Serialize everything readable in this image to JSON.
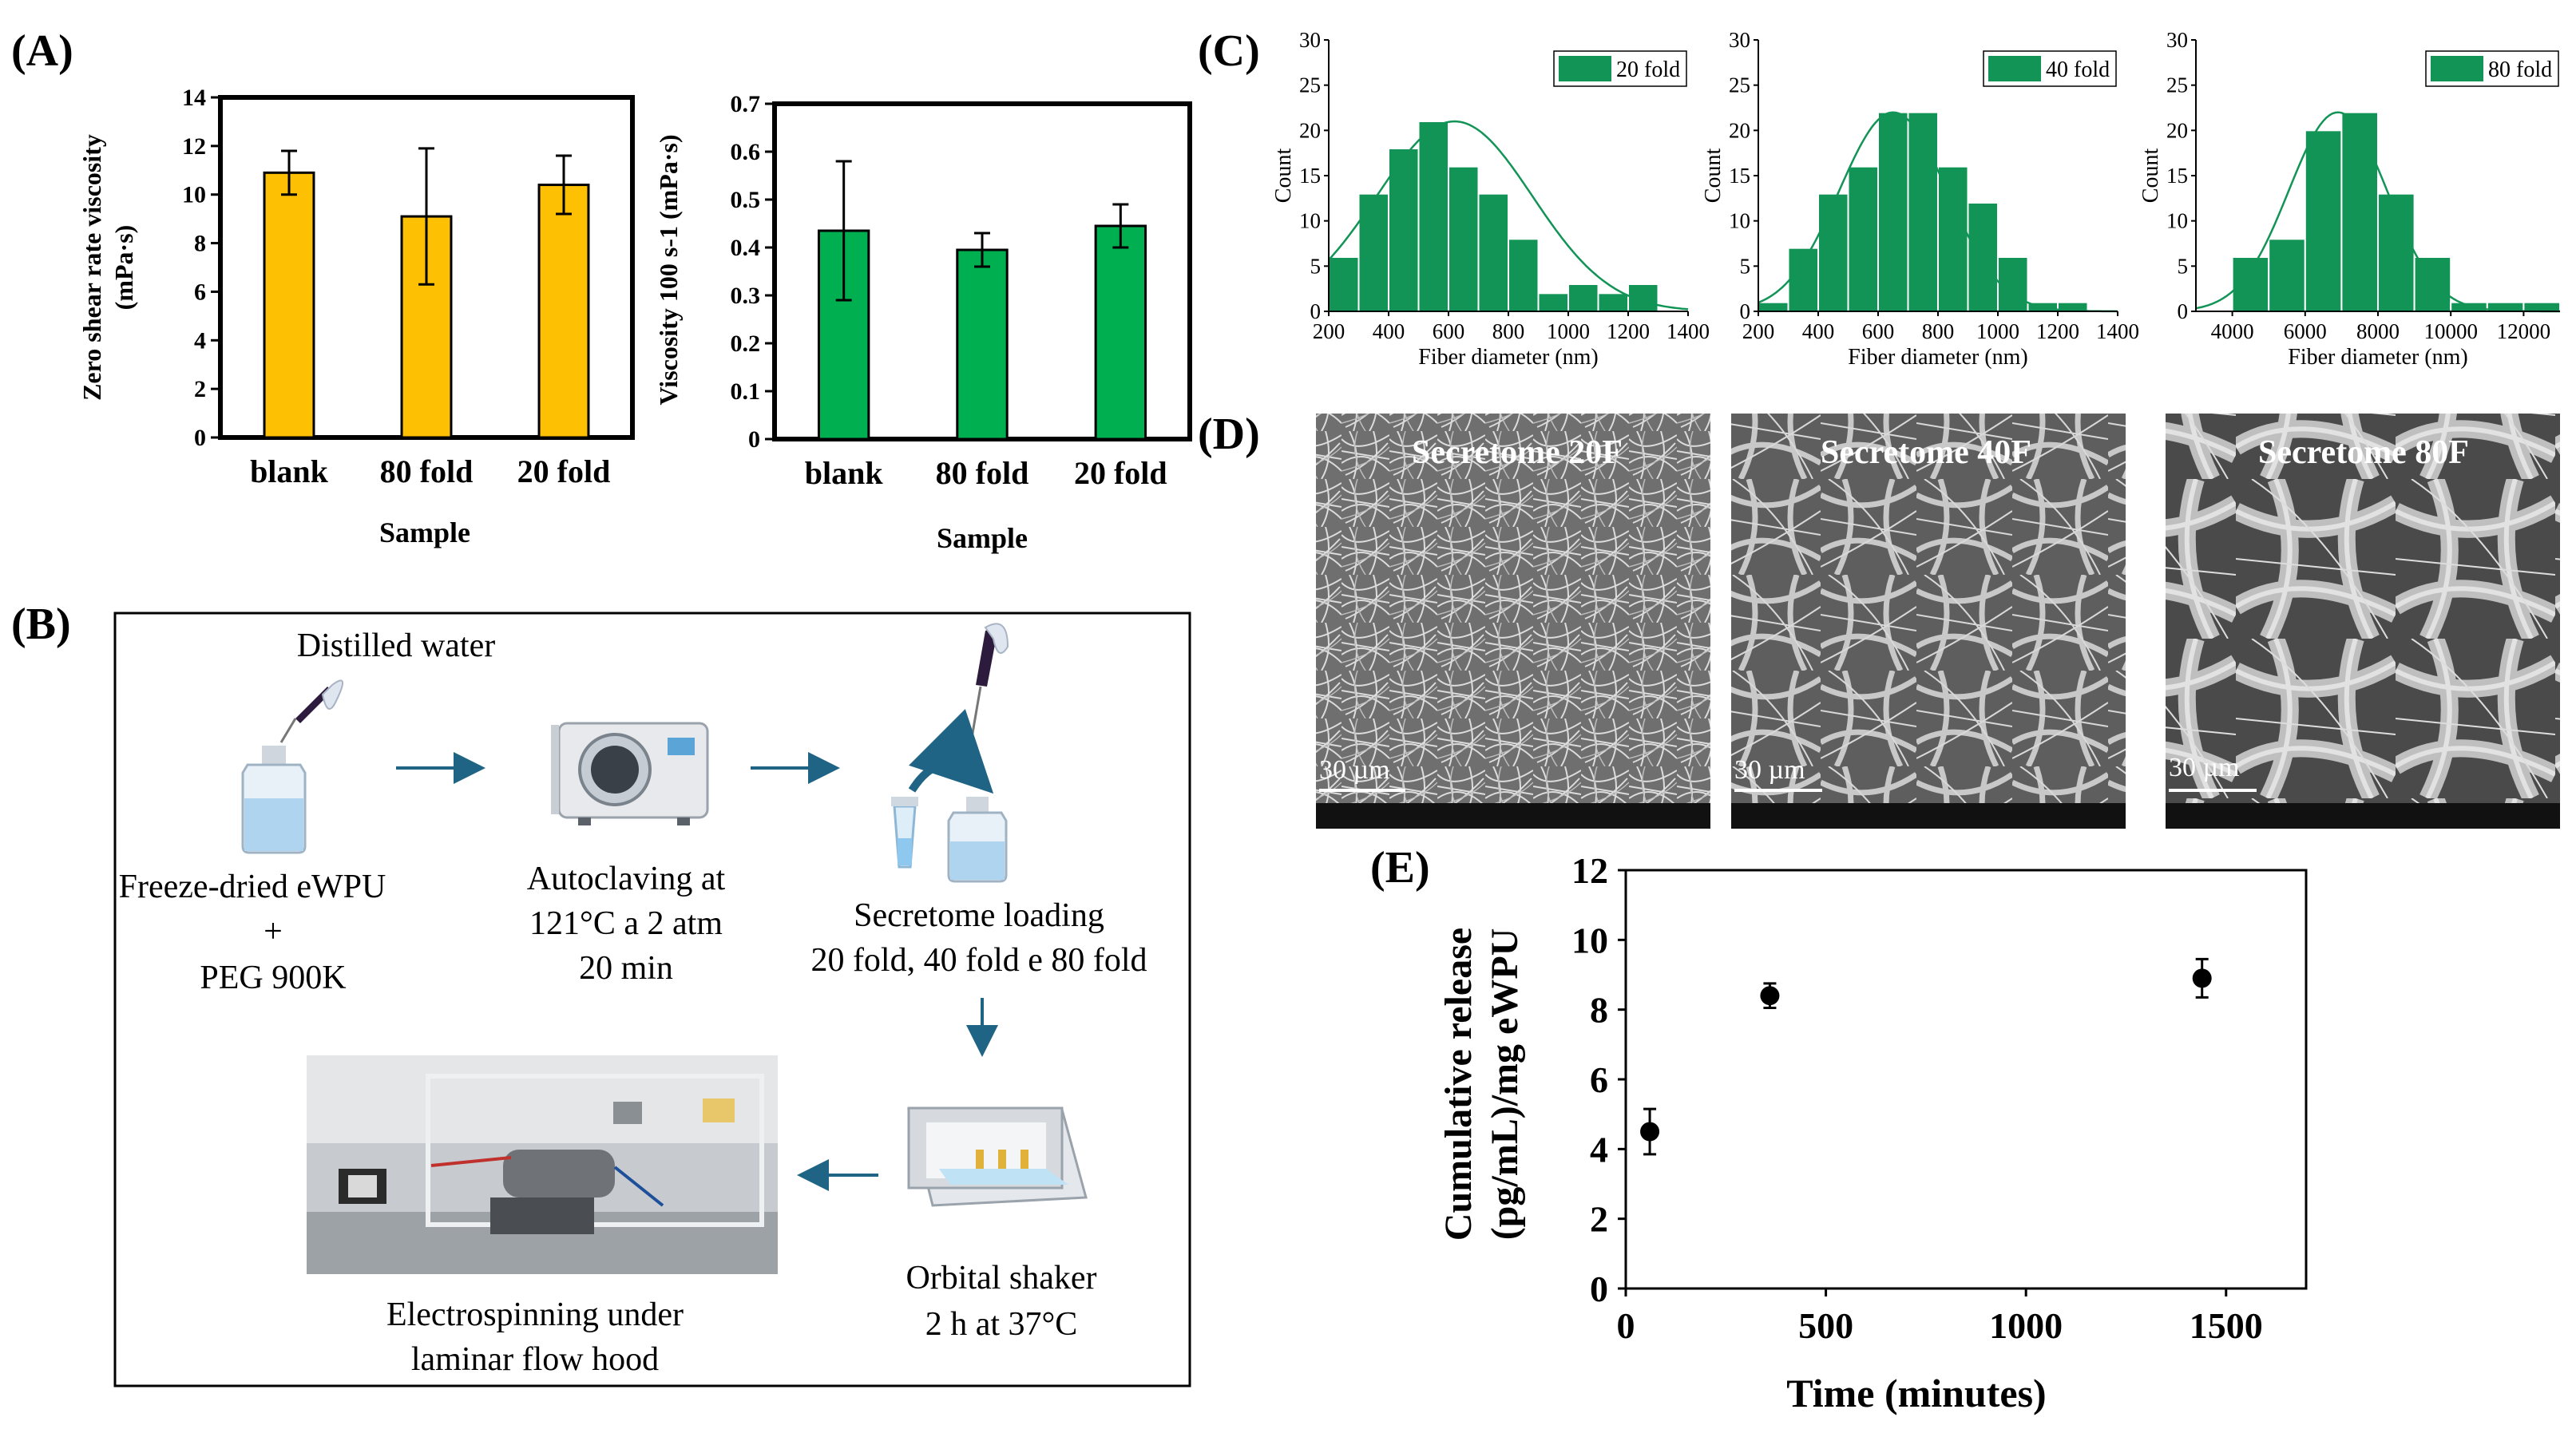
{
  "colors": {
    "yellow_bar": "#FDC003",
    "green_bar": "#00B050",
    "hist_green": "#129456",
    "arrow": "#1F6385"
  },
  "panel_labels": {
    "a": "(A)",
    "b": "(B)",
    "c": "(C)",
    "d": "(D)",
    "e": "(E)"
  },
  "chart_data": [
    {
      "id": "A1",
      "type": "bar",
      "categories": [
        "blank",
        "80 fold",
        "20 fold"
      ],
      "values": [
        10.9,
        9.1,
        10.4
      ],
      "errors": [
        0.9,
        2.8,
        1.2
      ],
      "ylim": [
        0,
        14
      ],
      "yticks": [
        "0",
        "2",
        "4",
        "6",
        "8",
        "10",
        "12",
        "14"
      ],
      "ylabel_line1": "Zero shear rate  viscosity",
      "ylabel_line2": "(mPa·s)",
      "xlabel": "Sample",
      "color": "#FDC003"
    },
    {
      "id": "A2",
      "type": "bar",
      "categories": [
        "blank",
        "80 fold",
        "20 fold"
      ],
      "values": [
        0.435,
        0.395,
        0.445
      ],
      "errors": [
        0.145,
        0.035,
        0.045
      ],
      "ylim": [
        0,
        0.7
      ],
      "yticks": [
        "0",
        "0.1",
        "0.2",
        "0.3",
        "0.4",
        "0.5",
        "0.6",
        "0.7"
      ],
      "ylabel": "Viscosity 100 s-1 (mPa·s)",
      "xlabel": "Sample",
      "color": "#00B050"
    },
    {
      "id": "C1",
      "type": "bar",
      "subtype": "histogram",
      "legend": "20 fold",
      "bin_edges": [
        200,
        300,
        400,
        500,
        600,
        700,
        800,
        900,
        1000,
        1100,
        1200,
        1300
      ],
      "counts": [
        6,
        13,
        18,
        21,
        16,
        13,
        8,
        2,
        3,
        2,
        3
      ],
      "fit": {
        "mean": 620,
        "sd": 260,
        "peak": 21
      },
      "xlim": [
        200,
        1400
      ],
      "xticks": [
        "200",
        "400",
        "600",
        "800",
        "1000",
        "1200",
        "1400"
      ],
      "ylim": [
        0,
        30
      ],
      "yticks": [
        "0",
        "5",
        "10",
        "15",
        "20",
        "25",
        "30"
      ],
      "xlabel": "Fiber diameter (nm)",
      "ylabel": "Count"
    },
    {
      "id": "C2",
      "type": "bar",
      "subtype": "histogram",
      "legend": "40 fold",
      "bin_edges": [
        200,
        300,
        400,
        500,
        600,
        700,
        800,
        900,
        1000,
        1100,
        1200,
        1300
      ],
      "counts": [
        1,
        7,
        13,
        16,
        22,
        22,
        16,
        12,
        6,
        1,
        1
      ],
      "fit": {
        "mean": 650,
        "sd": 180,
        "peak": 22
      },
      "xlim": [
        200,
        1400
      ],
      "xticks": [
        "200",
        "400",
        "600",
        "800",
        "1000",
        "1200",
        "1400"
      ],
      "ylim": [
        0,
        30
      ],
      "yticks": [
        "0",
        "5",
        "10",
        "15",
        "20",
        "25",
        "30"
      ],
      "xlabel": "Fiber diameter (nm)",
      "ylabel": "Count"
    },
    {
      "id": "C3",
      "type": "bar",
      "subtype": "histogram",
      "legend": "80 fold",
      "bin_edges": [
        4000,
        5000,
        6000,
        7000,
        8000,
        9000,
        10000,
        11000,
        12000,
        13000
      ],
      "counts": [
        6,
        8,
        20,
        22,
        13,
        6,
        1,
        1,
        1
      ],
      "fit": {
        "mean": 6900,
        "sd": 1350,
        "peak": 22
      },
      "xlim": [
        3000,
        13000
      ],
      "xticks": [
        "4000",
        "6000",
        "8000",
        "10000",
        "12000"
      ],
      "ylim": [
        0,
        30
      ],
      "yticks": [
        "0",
        "5",
        "10",
        "15",
        "20",
        "25",
        "30"
      ],
      "xlabel": "Fiber diameter (nm)",
      "ylabel": "Count"
    },
    {
      "id": "E",
      "type": "scatter",
      "x": [
        60,
        360,
        1440
      ],
      "y": [
        4.5,
        8.4,
        8.9
      ],
      "yerr": [
        0.65,
        0.35,
        0.55
      ],
      "xlim": [
        0,
        1700
      ],
      "ylim": [
        0,
        12
      ],
      "xticks": [
        "0",
        "500",
        "1000",
        "1500"
      ],
      "xtick_values": [
        0,
        500,
        1000,
        1500
      ],
      "yticks": [
        "0",
        "2",
        "4",
        "6",
        "8",
        "10",
        "12"
      ],
      "xlabel": "Time (minutes)",
      "ylabel_line1": "Cumulative release",
      "ylabel_line2": "(pg/mL)/mg eWPU"
    }
  ],
  "sem_images": [
    {
      "title": "Secretome 20F",
      "scale": "30 µm"
    },
    {
      "title": "Secretome 40F",
      "scale": "30 µm"
    },
    {
      "title": "Secretome 80F",
      "scale": "30 µm"
    }
  ],
  "workflow": {
    "distilled_water": "Distilled water",
    "step1_line1": "Freeze-dried eWPU",
    "step1_line2": "+",
    "step1_line3": "PEG 900K",
    "step2_line1": "Autoclaving at",
    "step2_line2": "121°C a 2 atm",
    "step2_line3": "20 min",
    "step3_line1": "Secretome loading",
    "step3_line2": "20 fold, 40 fold e 80 fold",
    "step4_line1": "Orbital shaker",
    "step4_line2": "2 h at 37°C",
    "step5_line1": "Electrospinning under",
    "step5_line2": "laminar flow hood"
  }
}
